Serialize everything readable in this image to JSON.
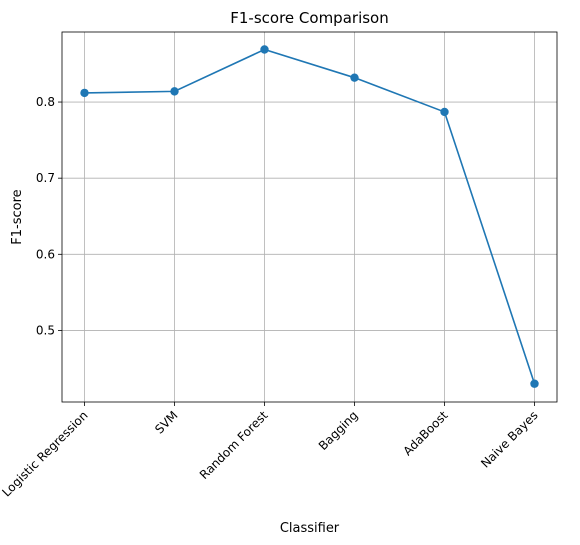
{
  "chart_data": {
    "type": "line",
    "title": "F1-score Comparison",
    "xlabel": "Classifier",
    "ylabel": "F1-score",
    "categories": [
      "Logistic Regression",
      "SVM",
      "Random Forest",
      "Bagging",
      "AdaBoost",
      "Naive Bayes"
    ],
    "series": [
      {
        "values": [
          0.812,
          0.814,
          0.869,
          0.832,
          0.787,
          0.43
        ],
        "color": "#1f77b4"
      }
    ],
    "ylim": [
      0.406,
      0.892
    ],
    "yticks": [
      0.5,
      0.6,
      0.7,
      0.8
    ],
    "yticklabels": [
      "0.5",
      "0.6",
      "0.7",
      "0.8"
    ],
    "grid": true,
    "marker": "circle"
  }
}
